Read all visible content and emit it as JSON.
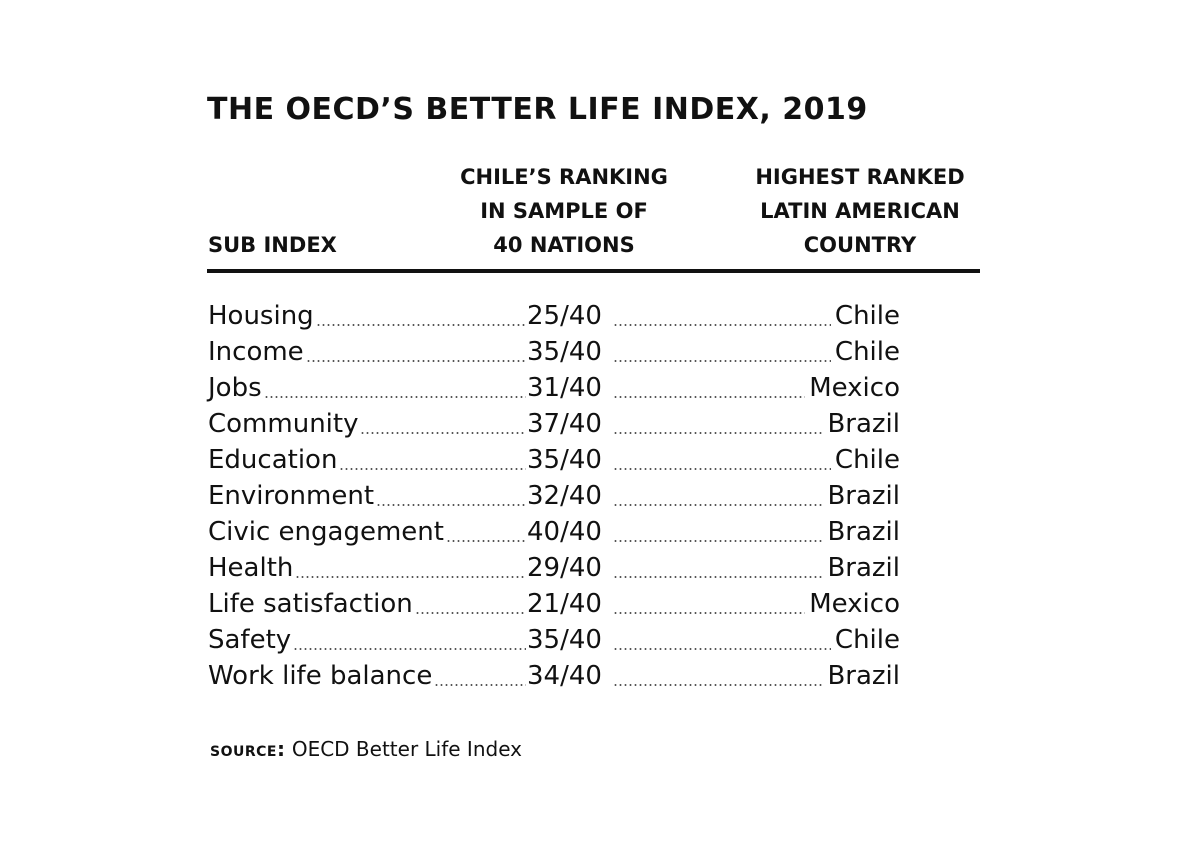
{
  "title": "THE OECD’S BETTER LIFE INDEX, 2019",
  "headers": {
    "sub_index": "SUB INDEX",
    "ranking": [
      "CHILE’S RANKING",
      "IN SAMPLE OF",
      "40 NATIONS"
    ],
    "country": [
      "HIGHEST RANKED",
      "LATIN AMERICAN",
      "COUNTRY"
    ]
  },
  "rows": [
    {
      "label": "Housing",
      "rank": "25/40",
      "country": "Chile"
    },
    {
      "label": "Income",
      "rank": "35/40",
      "country": "Chile"
    },
    {
      "label": "Jobs",
      "rank": "31/40",
      "country": "Mexico"
    },
    {
      "label": "Community",
      "rank": "37/40",
      "country": "Brazil"
    },
    {
      "label": "Education",
      "rank": "35/40",
      "country": "Chile"
    },
    {
      "label": "Environment",
      "rank": "32/40",
      "country": "Brazil"
    },
    {
      "label": "Civic engagement",
      "rank": "40/40",
      "country": "Brazil"
    },
    {
      "label": "Health",
      "rank": "29/40",
      "country": "Brazil"
    },
    {
      "label": "Life satisfaction",
      "rank": "21/40",
      "country": "Mexico"
    },
    {
      "label": "Safety",
      "rank": "35/40",
      "country": "Chile"
    },
    {
      "label": "Work life balance",
      "rank": "34/40",
      "country": "Brazil"
    }
  ],
  "source": {
    "label": "SOURCE:",
    "text": "OECD Better Life Index"
  }
}
